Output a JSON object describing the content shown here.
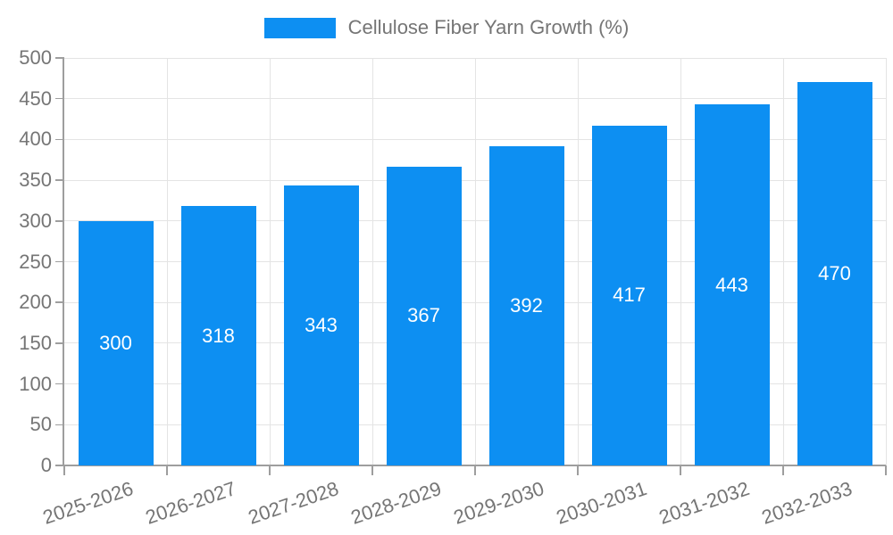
{
  "legend": {
    "label": "Cellulose Fiber Yarn Growth (%)"
  },
  "chart_data": {
    "type": "bar",
    "title": "Cellulose Fiber Yarn Growth (%)",
    "categories": [
      "2025-2026",
      "2026-2027",
      "2027-2028",
      "2028-2029",
      "2029-2030",
      "2030-2031",
      "2031-2032",
      "2032-2033"
    ],
    "values": [
      300,
      318,
      343,
      367,
      392,
      417,
      443,
      470
    ],
    "xlabel": "",
    "ylabel": "",
    "ylim": [
      0,
      500
    ],
    "yticks": [
      0,
      50,
      100,
      150,
      200,
      250,
      300,
      350,
      400,
      450,
      500
    ],
    "grid": true,
    "legend_position": "top",
    "value_label_position": "inside-center",
    "colors": {
      "bar": "#0d8ff2",
      "value_label": "#ffffff",
      "axis": "#9e9e9e",
      "gridline": "#e4e4e4",
      "tick_text": "#757575"
    }
  }
}
